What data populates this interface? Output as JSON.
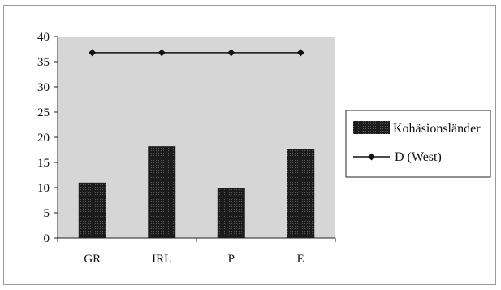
{
  "chart_data": {
    "type": "bar",
    "title": "",
    "xlabel": "",
    "ylabel": "",
    "categories": [
      "GR",
      "IRL",
      "P",
      "E"
    ],
    "ylim": [
      0,
      40
    ],
    "yticks": [
      0,
      5,
      10,
      15,
      20,
      25,
      30,
      35,
      40
    ],
    "grid": false,
    "legend_position": "right",
    "series": [
      {
        "name": "Kohäsionsländer",
        "type": "bar",
        "values": [
          11,
          18.2,
          9.9,
          17.7
        ]
      },
      {
        "name": "D (West)",
        "type": "line",
        "marker": "diamond",
        "values": [
          36.8,
          36.8,
          36.8,
          36.8
        ]
      }
    ],
    "colors": {
      "plot_background": "#d6d6d6",
      "bar_fill": "#1c1c1c",
      "line": "#111111"
    }
  }
}
